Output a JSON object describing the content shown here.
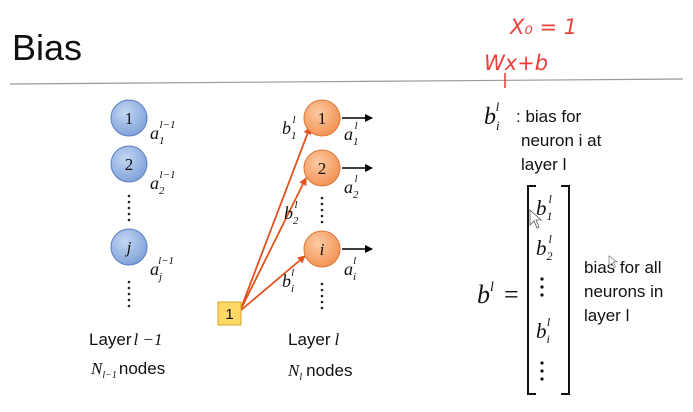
{
  "slide": {
    "title": "Bias"
  },
  "annotations": {
    "line1": "X₀ = 1",
    "line2": "Wx+b"
  },
  "prev_layer": {
    "nodes": [
      {
        "label": "1",
        "activation_base": "a",
        "sub": "1",
        "sup": "l−1"
      },
      {
        "label": "2",
        "activation_base": "a",
        "sub": "2",
        "sup": "l−1"
      },
      {
        "label": "j",
        "activation_base": "a",
        "sub": "j",
        "sup": "l−1"
      }
    ],
    "caption_word": "Layer",
    "caption_math": "l −1",
    "count_symbol": "N",
    "count_sub": "l−1",
    "count_word": "nodes"
  },
  "curr_layer": {
    "nodes": [
      {
        "label": "1",
        "activation_base": "a",
        "sub": "1",
        "sup": "l",
        "bias_base": "b",
        "bias_sub": "1",
        "bias_sup": "l"
      },
      {
        "label": "2",
        "activation_base": "a",
        "sub": "2",
        "sup": "l",
        "bias_base": "b",
        "bias_sub": "2",
        "bias_sup": "l"
      },
      {
        "label": "i",
        "activation_base": "a",
        "sub": "i",
        "sup": "l",
        "bias_base": "b",
        "bias_sub": "i",
        "bias_sup": "l"
      }
    ],
    "caption_word": "Layer",
    "caption_math": "l",
    "count_symbol": "N",
    "count_sub": "l",
    "count_word": "nodes"
  },
  "bias_unit": {
    "label": "1"
  },
  "definition": {
    "symbol": "b",
    "sub": "i",
    "sup": "l",
    "line1": ": bias for",
    "line2": "neuron i at",
    "line3": "layer l"
  },
  "vector": {
    "lhs": "b",
    "lhs_sup": "l",
    "equals": "=",
    "entries": [
      {
        "base": "b",
        "sub": "1",
        "sup": "l"
      },
      {
        "base": "b",
        "sub": "2",
        "sup": "l"
      },
      {
        "base": "b",
        "sub": "i",
        "sup": "l"
      }
    ],
    "desc_line1": "bias for all",
    "desc_line2": "neurons in",
    "desc_line3": "layer l"
  },
  "colors": {
    "prev_node_fill": "#8fb0e2",
    "prev_node_stroke": "#5b7fbf",
    "curr_node_fill": "#f6a56c",
    "curr_node_stroke": "#d9793b",
    "bias_box_fill": "#ffd866",
    "bias_box_stroke": "#d8a520",
    "edge": "#e0531f",
    "annotation": "#e8413b",
    "rule": "#9a9a9a"
  }
}
